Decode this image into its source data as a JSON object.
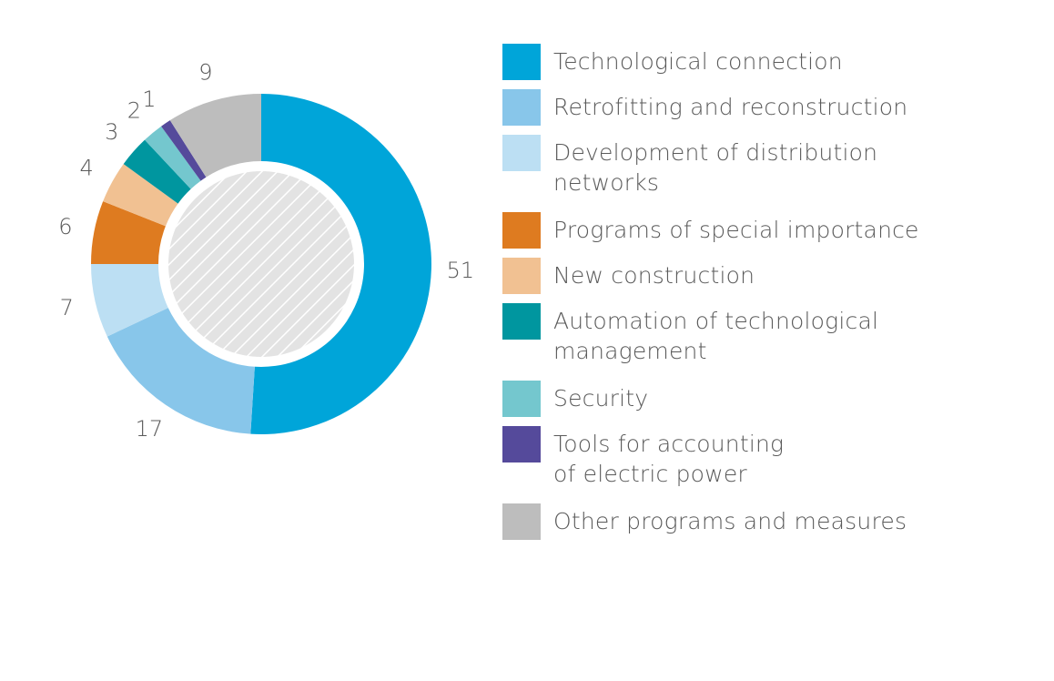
{
  "chart_data": {
    "type": "pie",
    "donut": true,
    "categories": [
      "Technological connection",
      "Retrofitting and reconstruction",
      "Development of distribution\nnetworks",
      "Programs of special importance",
      "New construction",
      "Automation of technological\nmanagement",
      "Security",
      "Tools for accounting\nof electric power",
      "Other programs and measures"
    ],
    "values": [
      51,
      17,
      7,
      6,
      4,
      3,
      2,
      1,
      9
    ],
    "value_labels": [
      "51",
      "17",
      "7",
      "6",
      "4",
      "3",
      "2",
      "1",
      "9"
    ],
    "colors": [
      "#00a5d9",
      "#88c6ea",
      "#bcdff3",
      "#de7b20",
      "#f1c192",
      "#00969f",
      "#74c7ce",
      "#554a9b",
      "#bdbdbd"
    ],
    "center_fill": "hatched-gray",
    "legend_position": "right"
  }
}
